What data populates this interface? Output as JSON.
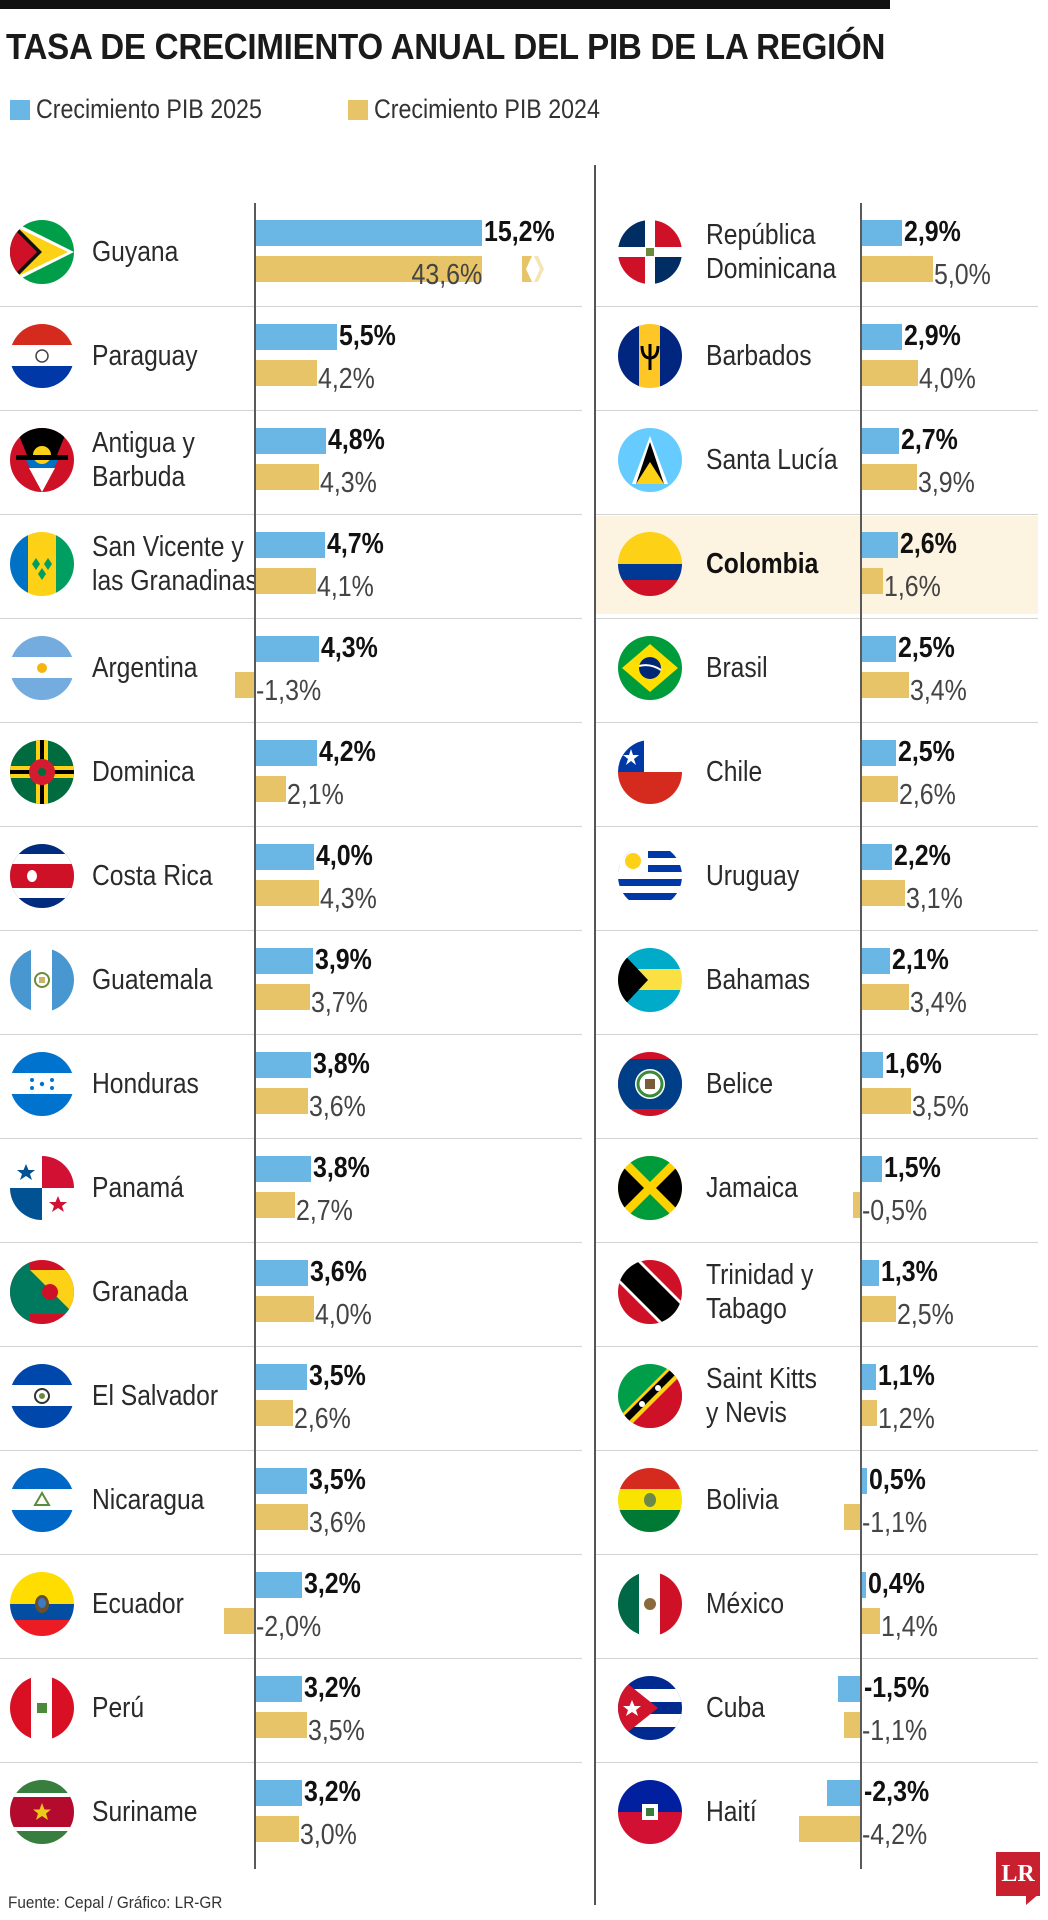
{
  "title": "TASA DE CRECIMIENTO ANUAL DEL PIB DE LA REGIÓN",
  "legend": [
    {
      "label": "Crecimiento PIB 2025",
      "color": "#6ab7e6"
    },
    {
      "label": "Crecimiento PIB 2024",
      "color": "#e8c468"
    }
  ],
  "source": "Fuente: Cepal / Gráfico: LR-GR",
  "logo": "LR",
  "chart_data": {
    "type": "bar",
    "orientation": "horizontal",
    "series": [
      {
        "name": "Crecimiento PIB 2025",
        "color": "#6ab7e6"
      },
      {
        "name": "Crecimiento PIB 2024",
        "color": "#e8c468"
      }
    ],
    "highlight": "Colombia",
    "columns": [
      [
        {
          "name": "Guyana",
          "flag": "guyana-flag-icon",
          "v2025": 15.2,
          "v2024": 43.6,
          "l2025": "15,2%",
          "l2024": "43,6%"
        },
        {
          "name": "Paraguay",
          "flag": "paraguay-flag-icon",
          "v2025": 5.5,
          "v2024": 4.2,
          "l2025": "5,5%",
          "l2024": "4,2%"
        },
        {
          "name": "Antigua y\nBarbuda",
          "flag": "antigua-flag-icon",
          "v2025": 4.8,
          "v2024": 4.3,
          "l2025": "4,8%",
          "l2024": "4,3%"
        },
        {
          "name": "San Vicente y\nlas Granadinas",
          "flag": "san-vicente-flag-icon",
          "v2025": 4.7,
          "v2024": 4.1,
          "l2025": "4,7%",
          "l2024": "4,1%"
        },
        {
          "name": "Argentina",
          "flag": "argentina-flag-icon",
          "v2025": 4.3,
          "v2024": -1.3,
          "l2025": "4,3%",
          "l2024": "-1,3%"
        },
        {
          "name": "Dominica",
          "flag": "dominica-flag-icon",
          "v2025": 4.2,
          "v2024": 2.1,
          "l2025": "4,2%",
          "l2024": "2,1%"
        },
        {
          "name": "Costa Rica",
          "flag": "costa-rica-flag-icon",
          "v2025": 4.0,
          "v2024": 4.3,
          "l2025": "4,0%",
          "l2024": "4,3%"
        },
        {
          "name": "Guatemala",
          "flag": "guatemala-flag-icon",
          "v2025": 3.9,
          "v2024": 3.7,
          "l2025": "3,9%",
          "l2024": "3,7%"
        },
        {
          "name": "Honduras",
          "flag": "honduras-flag-icon",
          "v2025": 3.8,
          "v2024": 3.6,
          "l2025": "3,8%",
          "l2024": "3,6%"
        },
        {
          "name": "Panamá",
          "flag": "panama-flag-icon",
          "v2025": 3.8,
          "v2024": 2.7,
          "l2025": "3,8%",
          "l2024": "2,7%"
        },
        {
          "name": "Granada",
          "flag": "granada-flag-icon",
          "v2025": 3.6,
          "v2024": 4.0,
          "l2025": "3,6%",
          "l2024": "4,0%"
        },
        {
          "name": "El Salvador",
          "flag": "el-salvador-flag-icon",
          "v2025": 3.5,
          "v2024": 2.6,
          "l2025": "3,5%",
          "l2024": "2,6%"
        },
        {
          "name": "Nicaragua",
          "flag": "nicaragua-flag-icon",
          "v2025": 3.5,
          "v2024": 3.6,
          "l2025": "3,5%",
          "l2024": "3,6%"
        },
        {
          "name": "Ecuador",
          "flag": "ecuador-flag-icon",
          "v2025": 3.2,
          "v2024": -2.0,
          "l2025": "3,2%",
          "l2024": "-2,0%"
        },
        {
          "name": "Perú",
          "flag": "peru-flag-icon",
          "v2025": 3.2,
          "v2024": 3.5,
          "l2025": "3,2%",
          "l2024": "3,5%"
        },
        {
          "name": "Suriname",
          "flag": "suriname-flag-icon",
          "v2025": 3.2,
          "v2024": 3.0,
          "l2025": "3,2%",
          "l2024": "3,0%"
        }
      ],
      [
        {
          "name": "República\nDominicana",
          "flag": "republica-dominicana-flag-icon",
          "v2025": 2.9,
          "v2024": 5.0,
          "l2025": "2,9%",
          "l2024": "5,0%"
        },
        {
          "name": "Barbados",
          "flag": "barbados-flag-icon",
          "v2025": 2.9,
          "v2024": 4.0,
          "l2025": "2,9%",
          "l2024": "4,0%"
        },
        {
          "name": "Santa Lucía",
          "flag": "santa-lucia-flag-icon",
          "v2025": 2.7,
          "v2024": 3.9,
          "l2025": "2,7%",
          "l2024": "3,9%"
        },
        {
          "name": "Colombia",
          "flag": "colombia-flag-icon",
          "v2025": 2.6,
          "v2024": 1.6,
          "l2025": "2,6%",
          "l2024": "1,6%"
        },
        {
          "name": "Brasil",
          "flag": "brasil-flag-icon",
          "v2025": 2.5,
          "v2024": 3.4,
          "l2025": "2,5%",
          "l2024": "3,4%"
        },
        {
          "name": "Chile",
          "flag": "chile-flag-icon",
          "v2025": 2.5,
          "v2024": 2.6,
          "l2025": "2,5%",
          "l2024": "2,6%"
        },
        {
          "name": "Uruguay",
          "flag": "uruguay-flag-icon",
          "v2025": 2.2,
          "v2024": 3.1,
          "l2025": "2,2%",
          "l2024": "3,1%"
        },
        {
          "name": "Bahamas",
          "flag": "bahamas-flag-icon",
          "v2025": 2.1,
          "v2024": 3.4,
          "l2025": "2,1%",
          "l2024": "3,4%"
        },
        {
          "name": "Belice",
          "flag": "belice-flag-icon",
          "v2025": 1.6,
          "v2024": 3.5,
          "l2025": "1,6%",
          "l2024": "3,5%"
        },
        {
          "name": "Jamaica",
          "flag": "jamaica-flag-icon",
          "v2025": 1.5,
          "v2024": -0.5,
          "l2025": "1,5%",
          "l2024": "-0,5%"
        },
        {
          "name": "Trinidad y\nTabago",
          "flag": "trinidad-flag-icon",
          "v2025": 1.3,
          "v2024": 2.5,
          "l2025": "1,3%",
          "l2024": "2,5%"
        },
        {
          "name": "Saint Kitts\ny Nevis",
          "flag": "saint-kitts-flag-icon",
          "v2025": 1.1,
          "v2024": 1.2,
          "l2025": "1,1%",
          "l2024": "1,2%"
        },
        {
          "name": "Bolivia",
          "flag": "bolivia-flag-icon",
          "v2025": 0.5,
          "v2024": -1.1,
          "l2025": "0,5%",
          "l2024": "-1,1%"
        },
        {
          "name": "México",
          "flag": "mexico-flag-icon",
          "v2025": 0.4,
          "v2024": 1.4,
          "l2025": "0,4%",
          "l2024": "1,4%"
        },
        {
          "name": "Cuba",
          "flag": "cuba-flag-icon",
          "v2025": -1.5,
          "v2024": -1.1,
          "l2025": "-1,5%",
          "l2024": "-1,1%"
        },
        {
          "name": "Haití",
          "flag": "haiti-flag-icon",
          "v2025": -2.3,
          "v2024": -4.2,
          "l2025": "-2,3%",
          "l2024": "-4,2%"
        }
      ]
    ]
  }
}
